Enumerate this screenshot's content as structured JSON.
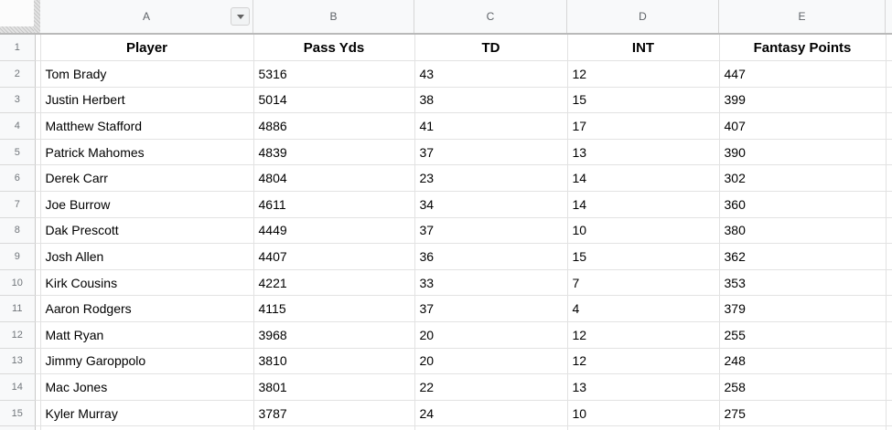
{
  "app_title": "Spreadsheet grid",
  "colors": {
    "grid_line": "#e2e2e2",
    "header_strip_bg": "#f8f9fa",
    "header_strip_border": "#b9b9b9",
    "column_letter_text": "#5f6368",
    "row_number_text": "#70757a",
    "cell_text": "#000000",
    "row_header_bg": "#f8f9fa"
  },
  "icons": {
    "column_a_dropdown": "chevron-down-icon"
  },
  "sheet": {
    "columns": [
      {
        "letter": "A"
      },
      {
        "letter": "B"
      },
      {
        "letter": "C"
      },
      {
        "letter": "D"
      },
      {
        "letter": "E"
      }
    ],
    "header_row": {
      "row_number": "1",
      "cells": [
        "Player",
        "Pass Yds",
        "TD",
        "INT",
        "Fantasy Points"
      ]
    },
    "rows": [
      {
        "row_number": "2",
        "cells": [
          "Tom Brady",
          "5316",
          "43",
          "12",
          "447"
        ]
      },
      {
        "row_number": "3",
        "cells": [
          "Justin Herbert",
          "5014",
          "38",
          "15",
          "399"
        ]
      },
      {
        "row_number": "4",
        "cells": [
          "Matthew Stafford",
          "4886",
          "41",
          "17",
          "407"
        ]
      },
      {
        "row_number": "5",
        "cells": [
          "Patrick Mahomes",
          "4839",
          "37",
          "13",
          "390"
        ]
      },
      {
        "row_number": "6",
        "cells": [
          "Derek Carr",
          "4804",
          "23",
          "14",
          "302"
        ]
      },
      {
        "row_number": "7",
        "cells": [
          "Joe Burrow",
          "4611",
          "34",
          "14",
          "360"
        ]
      },
      {
        "row_number": "8",
        "cells": [
          "Dak Prescott",
          "4449",
          "37",
          "10",
          "380"
        ]
      },
      {
        "row_number": "9",
        "cells": [
          "Josh Allen",
          "4407",
          "36",
          "15",
          "362"
        ]
      },
      {
        "row_number": "10",
        "cells": [
          "Kirk Cousins",
          "4221",
          "33",
          "7",
          "353"
        ]
      },
      {
        "row_number": "11",
        "cells": [
          "Aaron Rodgers",
          "4115",
          "37",
          "4",
          "379"
        ]
      },
      {
        "row_number": "12",
        "cells": [
          "Matt Ryan",
          "3968",
          "20",
          "12",
          "255"
        ]
      },
      {
        "row_number": "13",
        "cells": [
          "Jimmy Garoppolo",
          "3810",
          "20",
          "12",
          "248"
        ]
      },
      {
        "row_number": "14",
        "cells": [
          "Mac Jones",
          "3801",
          "22",
          "13",
          "258"
        ]
      },
      {
        "row_number": "15",
        "cells": [
          "Kyler Murray",
          "3787",
          "24",
          "10",
          "275"
        ]
      }
    ]
  }
}
